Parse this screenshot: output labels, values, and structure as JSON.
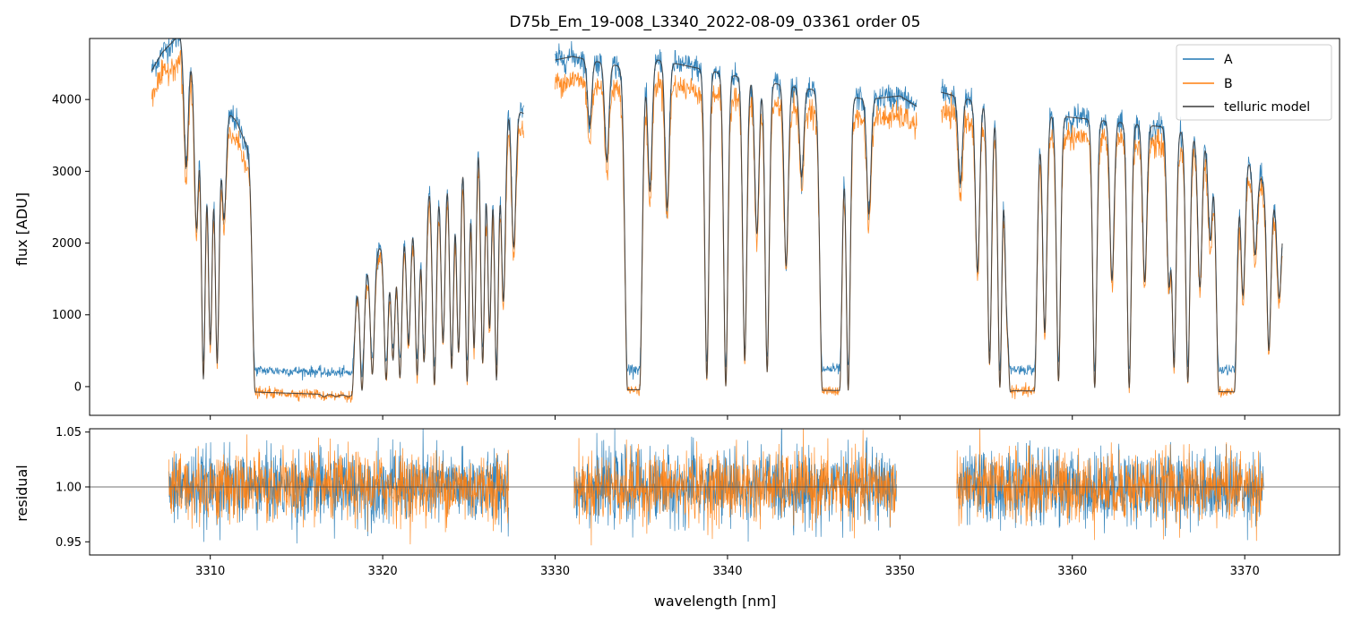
{
  "figure_title": "D75b_Em_19-008_L3340_2022-08-09_03361  order 05",
  "colors": {
    "A": "#1f77b4",
    "B": "#ff7f0e",
    "model": "#3a3a3a",
    "frame": "#000000"
  },
  "chart_data": [
    {
      "panel": "flux",
      "type": "line",
      "title": "D75b_Em_19-008_L3340_2022-08-09_03361  order 05",
      "xlabel": "",
      "ylabel": "flux [ADU]",
      "xlim": [
        3303,
        3375.5
      ],
      "ylim": [
        -400,
        4850
      ],
      "yticks": [
        0,
        1000,
        2000,
        3000,
        4000
      ],
      "ytick_labels": [
        "0",
        "1000",
        "2000",
        "3000",
        "4000"
      ],
      "xticks": [
        3310,
        3320,
        3330,
        3340,
        3350,
        3360,
        3370
      ],
      "legend": {
        "position": "top-right",
        "entries": [
          "A",
          "B",
          "telluric model"
        ]
      },
      "segments": [
        [
          3306.6,
          3328.2
        ],
        [
          3330.0,
          3351.0
        ],
        [
          3352.4,
          3372.2
        ]
      ],
      "series": [
        {
          "name": "A",
          "role": "spectrum A",
          "scale": 1.0,
          "offset": 180,
          "noise": 90
        },
        {
          "name": "B",
          "role": "spectrum B",
          "scale": 0.93,
          "offset": -150,
          "noise": 90
        },
        {
          "name": "telluric model",
          "role": "model",
          "scale": 1.0,
          "offset": 0,
          "noise": 0
        }
      ],
      "continuum_knots": {
        "x": [
          3306.6,
          3307.2,
          3308.2,
          3309.0,
          3310.2,
          3311.5,
          3312.4,
          3318.0,
          3320.0,
          3322.0,
          3324.0,
          3326.0,
          3328.2,
          3330.0,
          3331.0,
          3334.0,
          3336.0,
          3339.0,
          3342.0,
          3346.0,
          3348.0,
          3350.0,
          3351.0,
          3352.4,
          3354.0,
          3358.0,
          3362.0,
          3366.0,
          3369.0,
          3370.5,
          3372.2
        ],
        "y": [
          4400,
          4650,
          4900,
          4500,
          4050,
          3700,
          3200,
          1300,
          2000,
          2600,
          3400,
          4100,
          3800,
          4550,
          4600,
          4450,
          4550,
          4400,
          4250,
          4100,
          4000,
          4050,
          3900,
          4100,
          4000,
          3800,
          3700,
          3600,
          3300,
          3100,
          2400
        ]
      },
      "saturated_bands": [
        [
          3312.6,
          3318.2
        ],
        [
          3334.2,
          3334.9
        ],
        [
          3345.5,
          3346.5
        ],
        [
          3356.4,
          3357.8
        ],
        [
          3368.5,
          3369.4
        ]
      ],
      "absorption_lines": [
        [
          3308.6,
          0.35
        ],
        [
          3309.2,
          0.5
        ],
        [
          3309.6,
          0.95
        ],
        [
          3310.0,
          0.85
        ],
        [
          3310.4,
          0.9
        ],
        [
          3310.8,
          0.4
        ],
        [
          3316.6,
          0.8
        ],
        [
          3317.3,
          0.8
        ],
        [
          3318.0,
          0.7
        ],
        [
          3318.8,
          0.95
        ],
        [
          3319.4,
          0.85
        ],
        [
          3320.2,
          0.9
        ],
        [
          3320.6,
          0.8
        ],
        [
          3321.0,
          0.9
        ],
        [
          3321.5,
          0.75
        ],
        [
          3322.0,
          0.9
        ],
        [
          3322.4,
          0.85
        ],
        [
          3323.0,
          0.95
        ],
        [
          3323.5,
          0.8
        ],
        [
          3324.0,
          0.9
        ],
        [
          3324.4,
          0.85
        ],
        [
          3324.9,
          0.95
        ],
        [
          3325.3,
          0.85
        ],
        [
          3325.8,
          0.9
        ],
        [
          3326.2,
          0.8
        ],
        [
          3326.6,
          0.95
        ],
        [
          3327.0,
          0.7
        ],
        [
          3327.6,
          0.5
        ],
        [
          3332.0,
          0.2
        ],
        [
          3333.0,
          0.3
        ],
        [
          3335.5,
          0.4
        ],
        [
          3336.5,
          0.45
        ],
        [
          3338.8,
          0.95
        ],
        [
          3339.9,
          0.97
        ],
        [
          3341.0,
          0.9
        ],
        [
          3341.7,
          0.5
        ],
        [
          3342.3,
          0.93
        ],
        [
          3343.4,
          0.6
        ],
        [
          3344.3,
          0.3
        ],
        [
          3347.0,
          0.98
        ],
        [
          3348.2,
          0.4
        ],
        [
          3353.5,
          0.3
        ],
        [
          3354.5,
          0.6
        ],
        [
          3355.2,
          0.9
        ],
        [
          3355.8,
          0.97
        ],
        [
          3356.2,
          0.6
        ],
        [
          3358.4,
          0.8
        ],
        [
          3359.2,
          0.95
        ],
        [
          3361.3,
          0.97
        ],
        [
          3362.3,
          0.6
        ],
        [
          3363.3,
          0.97
        ],
        [
          3364.2,
          0.6
        ],
        [
          3365.6,
          0.6
        ],
        [
          3365.9,
          0.9
        ],
        [
          3366.7,
          0.95
        ],
        [
          3367.4,
          0.6
        ],
        [
          3368.0,
          0.4
        ],
        [
          3369.9,
          0.6
        ],
        [
          3370.6,
          0.4
        ],
        [
          3371.4,
          0.8
        ],
        [
          3372.0,
          0.5
        ]
      ]
    },
    {
      "panel": "residual",
      "type": "line",
      "xlabel": "wavelength [nm]",
      "ylabel": "residual",
      "xlim": [
        3303,
        3375.5
      ],
      "ylim": [
        0.938,
        1.053
      ],
      "yticks": [
        0.95,
        1.0,
        1.05
      ],
      "ytick_labels": [
        "0.95",
        "1.00",
        "1.05"
      ],
      "xticks": [
        3310,
        3320,
        3330,
        3340,
        3350,
        3360,
        3370
      ],
      "xtick_labels": [
        "3310",
        "3320",
        "3330",
        "3340",
        "3350",
        "3360",
        "3370"
      ],
      "reference_line": 1.0,
      "segments": [
        [
          3307.6,
          3327.3
        ],
        [
          3331.1,
          3349.8
        ],
        [
          3353.3,
          3371.1
        ]
      ],
      "series": [
        {
          "name": "A",
          "center": 1.0,
          "noise": 0.022
        },
        {
          "name": "B",
          "center": 1.0,
          "noise": 0.021
        }
      ]
    }
  ]
}
